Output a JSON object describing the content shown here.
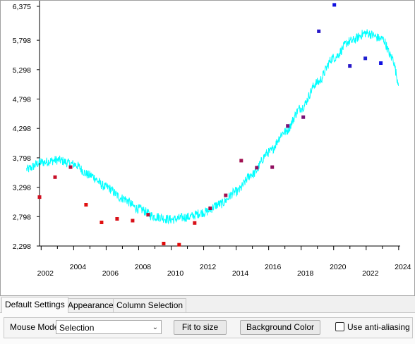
{
  "chart_data": {
    "type": "scatter",
    "x_tick_labels": [
      "2002",
      "2004",
      "2006",
      "2008",
      "2010",
      "2012",
      "2014",
      "2016",
      "2018",
      "2020",
      "2022",
      "2024"
    ],
    "y_tick_labels": [
      "2,298",
      "2,798",
      "3,298",
      "3,798",
      "4,298",
      "4,798",
      "5,298",
      "5,798",
      "6,375"
    ],
    "ylim": [
      2298,
      6375
    ],
    "xlim": [
      2001.0,
      2024.2
    ],
    "series": [
      {
        "style": "markers",
        "colors": "gradient red (early) to blue (late)",
        "points": [
          {
            "x": 2001.0,
            "y": 3130,
            "c": "#d01020"
          },
          {
            "x": 2002.0,
            "y": 3470,
            "c": "#c81028"
          },
          {
            "x": 2003.0,
            "y": 3640,
            "c": "#b51040"
          },
          {
            "x": 2004.0,
            "y": 3000,
            "c": "#e01010"
          },
          {
            "x": 2005.0,
            "y": 2700,
            "c": "#e01010"
          },
          {
            "x": 2006.0,
            "y": 2760,
            "c": "#d81018"
          },
          {
            "x": 2007.0,
            "y": 2730,
            "c": "#d81018"
          },
          {
            "x": 2008.0,
            "y": 2830,
            "c": "#c01030"
          },
          {
            "x": 2009.0,
            "y": 2340,
            "c": "#e00a0a"
          },
          {
            "x": 2010.0,
            "y": 2320,
            "c": "#e00a0a"
          },
          {
            "x": 2011.0,
            "y": 2690,
            "c": "#d81018"
          },
          {
            "x": 2012.0,
            "y": 2940,
            "c": "#a81048"
          },
          {
            "x": 2013.0,
            "y": 3160,
            "c": "#a01050"
          },
          {
            "x": 2014.0,
            "y": 3750,
            "c": "#a01050"
          },
          {
            "x": 2015.0,
            "y": 3630,
            "c": "#901060"
          },
          {
            "x": 2016.0,
            "y": 3640,
            "c": "#901060"
          },
          {
            "x": 2017.0,
            "y": 4340,
            "c": "#781078"
          },
          {
            "x": 2018.0,
            "y": 4490,
            "c": "#781078"
          },
          {
            "x": 2019.0,
            "y": 5950,
            "c": "#2818c8"
          },
          {
            "x": 2020.0,
            "y": 6400,
            "c": "#1010e0"
          },
          {
            "x": 2021.0,
            "y": 5360,
            "c": "#2818c8"
          },
          {
            "x": 2022.0,
            "y": 5490,
            "c": "#2020d0"
          },
          {
            "x": 2023.0,
            "y": 5410,
            "c": "#1010e0"
          }
        ]
      },
      {
        "style": "noisy-line",
        "color": "#00ffff",
        "points": [
          [
            2001.1,
            3600
          ],
          [
            2002.0,
            3720
          ],
          [
            2003.0,
            3760
          ],
          [
            2004.0,
            3690
          ],
          [
            2005.0,
            3500
          ],
          [
            2006.0,
            3300
          ],
          [
            2007.0,
            3110
          ],
          [
            2008.0,
            2930
          ],
          [
            2009.0,
            2800
          ],
          [
            2010.0,
            2750
          ],
          [
            2011.0,
            2790
          ],
          [
            2012.0,
            2870
          ],
          [
            2013.0,
            3010
          ],
          [
            2014.0,
            3220
          ],
          [
            2015.0,
            3520
          ],
          [
            2016.0,
            3890
          ],
          [
            2017.0,
            4240
          ],
          [
            2018.0,
            4650
          ],
          [
            2019.0,
            5080
          ],
          [
            2020.0,
            5500
          ],
          [
            2021.0,
            5780
          ],
          [
            2022.0,
            5920
          ],
          [
            2023.0,
            5820
          ],
          [
            2023.6,
            5500
          ],
          [
            2024.0,
            5090
          ]
        ]
      }
    ]
  },
  "tabs": {
    "default_settings": "Default Settings",
    "appearance": "Appearance",
    "column_selection": "Column Selection"
  },
  "controls": {
    "mouse_mode_label": "Mouse Mode",
    "mouse_mode_value": "Selection",
    "fit_to_size": "Fit to size",
    "background_color": "Background Color",
    "anti_aliasing_label": "Use anti-aliasing",
    "anti_aliasing_checked": false
  }
}
